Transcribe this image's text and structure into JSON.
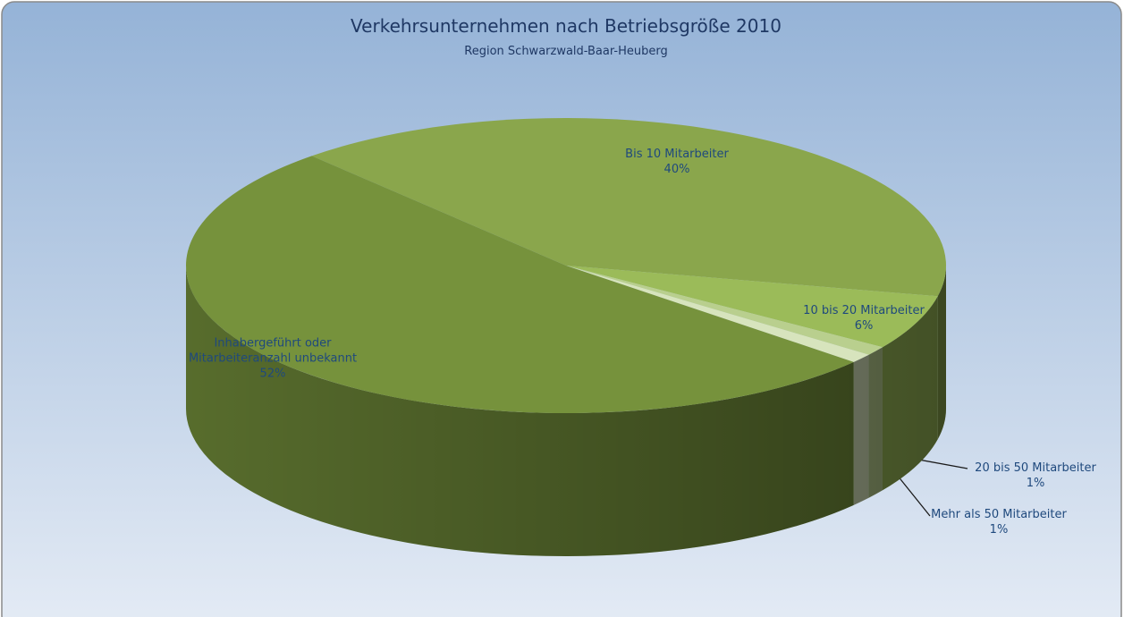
{
  "chart_data": {
    "type": "pie",
    "title": "Verkehrsunternehmen nach Betriebsgröße 2010",
    "subtitle": "Region Schwarzwald-Baar-Heuberg",
    "categories": [
      "Bis 10 Mitarbeiter",
      "10 bis 20 Mitarbeiter",
      "20 bis 50 Mitarbeiter",
      "Mehr als 50 Mitarbeiter",
      "Inhabergeführt oder Mitarbeiteranzahl unbekannt"
    ],
    "values": [
      40,
      6,
      1,
      1,
      52
    ],
    "value_labels": [
      "40%",
      "6%",
      "1%",
      "1%",
      "52%"
    ],
    "colors": [
      "#8aa64c",
      "#9bbb59",
      "#b9cf8e",
      "#d7e4bd",
      "#76923c"
    ]
  }
}
